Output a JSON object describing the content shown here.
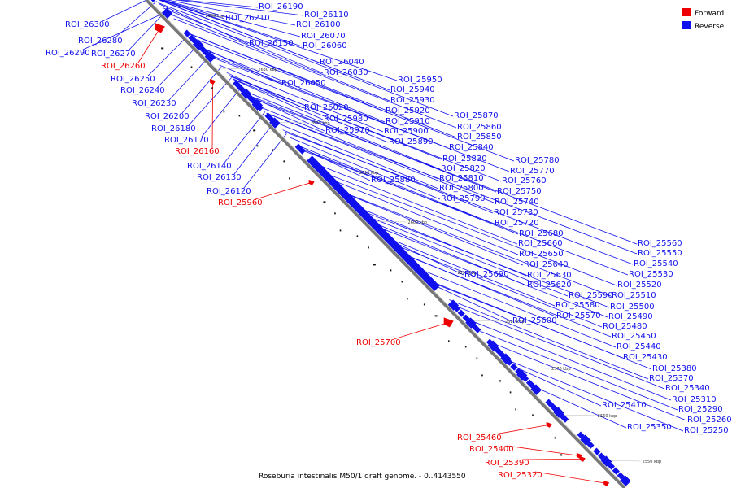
{
  "caption": "Roseburia intestinalis M50/1 draft genome. - 0..4143550",
  "legend": {
    "items": [
      {
        "label": "Forward",
        "color": "#ee0000"
      },
      {
        "label": "Reverse",
        "color": "#1010ee"
      }
    ]
  },
  "axis": {
    "tick_labels": [
      "2640 kbp",
      "2630 kbp",
      "2620 kbp",
      "2610 kbp",
      "2600 kbp",
      "2590 kbp",
      "2580 kbp",
      "2570 kbp",
      "2560 kbp",
      "2550 kbp"
    ]
  },
  "colors": {
    "forward": "#ee0000",
    "reverse": "#1010ee",
    "backbone": "#888888"
  },
  "reverse_labels": {
    "left": [
      "ROI_26300",
      "ROI_26280",
      "ROI_26290",
      "ROI_26270",
      "ROI_26250",
      "ROI_26240",
      "ROI_26230",
      "ROI_26200",
      "ROI_26180",
      "ROI_26170",
      "ROI_26140",
      "ROI_26130",
      "ROI_26120"
    ],
    "right": [
      "ROI_26190",
      "ROI_26210",
      "ROI_26110",
      "ROI_26100",
      "ROI_26070",
      "ROI_26150",
      "ROI_26060",
      "ROI_26040",
      "ROI_26030",
      "ROI_26050",
      "ROI_25950",
      "ROI_25940",
      "ROI_25930",
      "ROI_26020",
      "ROI_25920",
      "ROI_25980",
      "ROI_25910",
      "ROI_25970",
      "ROI_25900",
      "ROI_25870",
      "ROI_25890",
      "ROI_25860",
      "ROI_25850",
      "ROI_25840",
      "ROI_25830",
      "ROI_25780",
      "ROI_25820",
      "ROI_25770",
      "ROI_25810",
      "ROI_25880",
      "ROI_25760",
      "ROI_25800",
      "ROI_25750",
      "ROI_25790",
      "ROI_25740",
      "ROI_25730",
      "ROI_25720",
      "ROI_25680",
      "ROI_25660",
      "ROI_25650",
      "ROI_25640",
      "ROI_25690",
      "ROI_25630",
      "ROI_25620",
      "ROI_25560",
      "ROI_25550",
      "ROI_25540",
      "ROI_25530",
      "ROI_25520",
      "ROI_25590",
      "ROI_25510",
      "ROI_25580",
      "ROI_25500",
      "ROI_25570",
      "ROI_25490",
      "ROI_25600",
      "ROI_25480",
      "ROI_25450",
      "ROI_25440",
      "ROI_25430",
      "ROI_25380",
      "ROI_25370",
      "ROI_25340",
      "ROI_25410",
      "ROI_25310",
      "ROI_25290",
      "ROI_25260",
      "ROI_25350",
      "ROI_25250"
    ]
  },
  "forward_labels": [
    "ROI_26260",
    "ROI_26160",
    "ROI_25960",
    "ROI_25700",
    "ROI_25460",
    "ROI_25400",
    "ROI_25390",
    "ROI_25320"
  ]
}
